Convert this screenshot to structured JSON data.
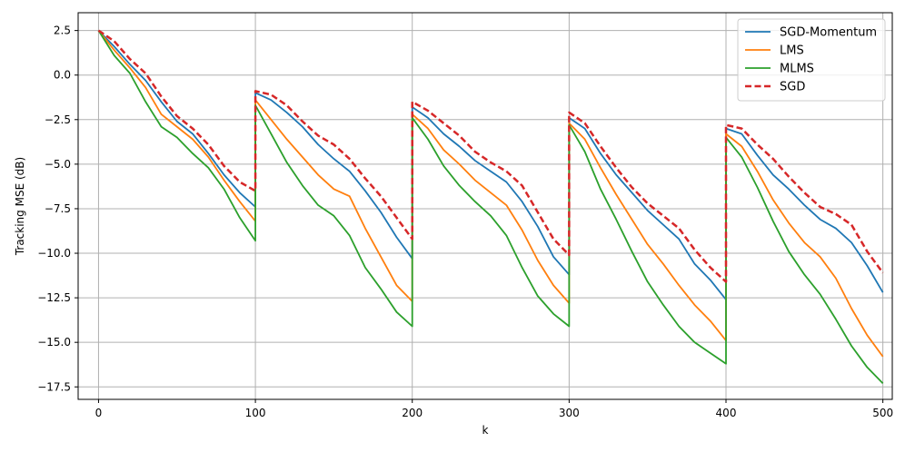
{
  "chart_data": {
    "type": "line",
    "title": "",
    "xlabel": "k",
    "ylabel": "Tracking MSE (dB)",
    "xlim": [
      -13,
      506
    ],
    "ylim": [
      -18.2,
      3.5
    ],
    "xticks": [
      0,
      100,
      200,
      300,
      400,
      500
    ],
    "yticks": [
      2.5,
      0.0,
      -2.5,
      -5.0,
      -7.5,
      -10.0,
      -12.5,
      -15.0,
      -17.5
    ],
    "xtick_labels": [
      "0",
      "100",
      "200",
      "300",
      "400",
      "500"
    ],
    "ytick_labels": [
      "2.5",
      "0.0",
      "−2.5",
      "−5.0",
      "−7.5",
      "−10.0",
      "−12.5",
      "−15.0",
      "−17.5"
    ],
    "grid": true,
    "legend_position": "top-right",
    "segments": [
      [
        0,
        100
      ],
      [
        100,
        200
      ],
      [
        200,
        300
      ],
      [
        300,
        400
      ],
      [
        400,
        500
      ]
    ],
    "series": [
      {
        "name": "SGD-Momentum",
        "color": "#1f77b4",
        "dash": "solid",
        "points": [
          [
            [
              0,
              2.5
            ],
            [
              10,
              1.6
            ],
            [
              20,
              0.6
            ],
            [
              30,
              -0.3
            ],
            [
              40,
              -1.5
            ],
            [
              50,
              -2.6
            ],
            [
              60,
              -3.3
            ],
            [
              70,
              -4.4
            ],
            [
              80,
              -5.6
            ],
            [
              90,
              -6.6
            ],
            [
              100,
              -7.4
            ]
          ],
          [
            [
              100,
              -1.0
            ],
            [
              110,
              -1.4
            ],
            [
              120,
              -2.1
            ],
            [
              130,
              -2.9
            ],
            [
              140,
              -3.9
            ],
            [
              150,
              -4.7
            ],
            [
              160,
              -5.4
            ],
            [
              170,
              -6.5
            ],
            [
              180,
              -7.7
            ],
            [
              190,
              -9.1
            ],
            [
              200,
              -10.3
            ]
          ],
          [
            [
              200,
              -1.8
            ],
            [
              210,
              -2.4
            ],
            [
              220,
              -3.3
            ],
            [
              230,
              -4.0
            ],
            [
              240,
              -4.8
            ],
            [
              250,
              -5.4
            ],
            [
              260,
              -6.0
            ],
            [
              270,
              -7.1
            ],
            [
              280,
              -8.5
            ],
            [
              290,
              -10.2
            ],
            [
              300,
              -11.2
            ]
          ],
          [
            [
              300,
              -2.4
            ],
            [
              310,
              -3.0
            ],
            [
              320,
              -4.4
            ],
            [
              330,
              -5.6
            ],
            [
              340,
              -6.6
            ],
            [
              350,
              -7.6
            ],
            [
              360,
              -8.4
            ],
            [
              370,
              -9.2
            ],
            [
              380,
              -10.6
            ],
            [
              390,
              -11.5
            ],
            [
              400,
              -12.6
            ]
          ],
          [
            [
              400,
              -3.0
            ],
            [
              410,
              -3.3
            ],
            [
              420,
              -4.5
            ],
            [
              430,
              -5.6
            ],
            [
              440,
              -6.4
            ],
            [
              450,
              -7.3
            ],
            [
              460,
              -8.1
            ],
            [
              470,
              -8.6
            ],
            [
              480,
              -9.4
            ],
            [
              490,
              -10.7
            ],
            [
              500,
              -12.2
            ]
          ]
        ]
      },
      {
        "name": "LMS",
        "color": "#ff7f0e",
        "dash": "solid",
        "points": [
          [
            [
              0,
              2.5
            ],
            [
              10,
              1.4
            ],
            [
              20,
              0.4
            ],
            [
              30,
              -0.7
            ],
            [
              40,
              -2.2
            ],
            [
              50,
              -2.9
            ],
            [
              60,
              -3.6
            ],
            [
              70,
              -4.6
            ],
            [
              80,
              -5.9
            ],
            [
              90,
              -7.1
            ],
            [
              100,
              -8.2
            ]
          ],
          [
            [
              100,
              -1.4
            ],
            [
              110,
              -2.5
            ],
            [
              120,
              -3.6
            ],
            [
              130,
              -4.6
            ],
            [
              140,
              -5.6
            ],
            [
              150,
              -6.4
            ],
            [
              160,
              -6.8
            ],
            [
              170,
              -8.6
            ],
            [
              180,
              -10.2
            ],
            [
              190,
              -11.8
            ],
            [
              200,
              -12.7
            ]
          ],
          [
            [
              200,
              -2.2
            ],
            [
              210,
              -3.0
            ],
            [
              220,
              -4.2
            ],
            [
              230,
              -5.0
            ],
            [
              240,
              -5.9
            ],
            [
              250,
              -6.6
            ],
            [
              260,
              -7.3
            ],
            [
              270,
              -8.7
            ],
            [
              280,
              -10.4
            ],
            [
              290,
              -11.8
            ],
            [
              300,
              -12.8
            ]
          ],
          [
            [
              300,
              -2.7
            ],
            [
              310,
              -3.6
            ],
            [
              320,
              -5.2
            ],
            [
              330,
              -6.7
            ],
            [
              340,
              -8.1
            ],
            [
              350,
              -9.5
            ],
            [
              360,
              -10.6
            ],
            [
              370,
              -11.8
            ],
            [
              380,
              -12.9
            ],
            [
              390,
              -13.8
            ],
            [
              400,
              -14.9
            ]
          ],
          [
            [
              400,
              -3.3
            ],
            [
              410,
              -4.0
            ],
            [
              420,
              -5.4
            ],
            [
              430,
              -7.0
            ],
            [
              440,
              -8.3
            ],
            [
              450,
              -9.4
            ],
            [
              460,
              -10.2
            ],
            [
              470,
              -11.4
            ],
            [
              480,
              -13.1
            ],
            [
              490,
              -14.6
            ],
            [
              500,
              -15.8
            ]
          ]
        ]
      },
      {
        "name": "MLMS",
        "color": "#2ca02c",
        "dash": "solid",
        "points": [
          [
            [
              0,
              2.5
            ],
            [
              10,
              1.1
            ],
            [
              20,
              0.1
            ],
            [
              30,
              -1.5
            ],
            [
              40,
              -2.9
            ],
            [
              50,
              -3.5
            ],
            [
              60,
              -4.4
            ],
            [
              70,
              -5.2
            ],
            [
              80,
              -6.4
            ],
            [
              90,
              -8.0
            ],
            [
              100,
              -9.3
            ]
          ],
          [
            [
              100,
              -1.7
            ],
            [
              110,
              -3.3
            ],
            [
              120,
              -4.9
            ],
            [
              130,
              -6.2
            ],
            [
              140,
              -7.3
            ],
            [
              150,
              -7.9
            ],
            [
              160,
              -9.0
            ],
            [
              170,
              -10.8
            ],
            [
              180,
              -12.0
            ],
            [
              190,
              -13.3
            ],
            [
              200,
              -14.1
            ]
          ],
          [
            [
              200,
              -2.4
            ],
            [
              210,
              -3.6
            ],
            [
              220,
              -5.1
            ],
            [
              230,
              -6.2
            ],
            [
              240,
              -7.1
            ],
            [
              250,
              -7.9
            ],
            [
              260,
              -9.0
            ],
            [
              270,
              -10.8
            ],
            [
              280,
              -12.4
            ],
            [
              290,
              -13.4
            ],
            [
              300,
              -14.1
            ]
          ],
          [
            [
              300,
              -2.8
            ],
            [
              310,
              -4.3
            ],
            [
              320,
              -6.4
            ],
            [
              330,
              -8.1
            ],
            [
              340,
              -9.9
            ],
            [
              350,
              -11.6
            ],
            [
              360,
              -12.9
            ],
            [
              370,
              -14.1
            ],
            [
              380,
              -15.0
            ],
            [
              390,
              -15.6
            ],
            [
              400,
              -16.2
            ]
          ],
          [
            [
              400,
              -3.5
            ],
            [
              410,
              -4.6
            ],
            [
              420,
              -6.3
            ],
            [
              430,
              -8.2
            ],
            [
              440,
              -9.9
            ],
            [
              450,
              -11.2
            ],
            [
              460,
              -12.3
            ],
            [
              470,
              -13.7
            ],
            [
              480,
              -15.2
            ],
            [
              490,
              -16.4
            ],
            [
              500,
              -17.3
            ]
          ]
        ]
      },
      {
        "name": "SGD",
        "color": "#d62728",
        "dash": "dashed",
        "points": [
          [
            [
              0,
              2.5
            ],
            [
              10,
              1.9
            ],
            [
              20,
              0.9
            ],
            [
              30,
              0.1
            ],
            [
              40,
              -1.2
            ],
            [
              50,
              -2.3
            ],
            [
              60,
              -3.0
            ],
            [
              70,
              -3.9
            ],
            [
              80,
              -5.1
            ],
            [
              90,
              -6.0
            ],
            [
              100,
              -6.5
            ]
          ],
          [
            [
              100,
              -0.9
            ],
            [
              110,
              -1.1
            ],
            [
              120,
              -1.7
            ],
            [
              130,
              -2.6
            ],
            [
              140,
              -3.4
            ],
            [
              150,
              -3.9
            ],
            [
              160,
              -4.7
            ],
            [
              170,
              -5.8
            ],
            [
              180,
              -6.8
            ],
            [
              190,
              -8.0
            ],
            [
              200,
              -9.2
            ]
          ],
          [
            [
              200,
              -1.5
            ],
            [
              210,
              -2.0
            ],
            [
              220,
              -2.7
            ],
            [
              230,
              -3.4
            ],
            [
              240,
              -4.3
            ],
            [
              250,
              -4.9
            ],
            [
              260,
              -5.4
            ],
            [
              270,
              -6.2
            ],
            [
              280,
              -7.7
            ],
            [
              290,
              -9.2
            ],
            [
              300,
              -10.1
            ]
          ],
          [
            [
              300,
              -2.1
            ],
            [
              310,
              -2.7
            ],
            [
              320,
              -4.0
            ],
            [
              330,
              -5.2
            ],
            [
              340,
              -6.3
            ],
            [
              350,
              -7.2
            ],
            [
              360,
              -7.9
            ],
            [
              370,
              -8.6
            ],
            [
              380,
              -9.8
            ],
            [
              390,
              -10.8
            ],
            [
              400,
              -11.6
            ]
          ],
          [
            [
              400,
              -2.8
            ],
            [
              410,
              -3.0
            ],
            [
              420,
              -3.9
            ],
            [
              430,
              -4.7
            ],
            [
              440,
              -5.7
            ],
            [
              450,
              -6.6
            ],
            [
              460,
              -7.4
            ],
            [
              470,
              -7.8
            ],
            [
              480,
              -8.4
            ],
            [
              490,
              -9.9
            ],
            [
              500,
              -11.1
            ]
          ]
        ]
      }
    ]
  }
}
